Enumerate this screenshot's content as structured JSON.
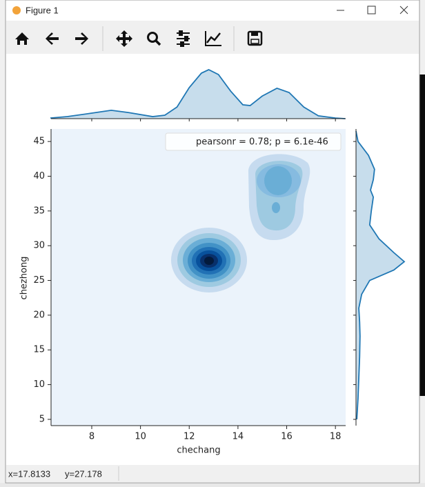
{
  "window": {
    "title": "Figure 1"
  },
  "status": {
    "x": "x=17.8133",
    "y": "y=27.178"
  },
  "chart_data": {
    "type": "kde-joint",
    "xlabel": "chechang",
    "ylabel": "chezhong",
    "annotation": "pearsonr = 0.78; p = 6.1e-46",
    "color": "#1f77b4",
    "xlim": [
      6.33,
      18.42
    ],
    "ylim": [
      4.1,
      46.8
    ],
    "xticks": [
      8,
      10,
      12,
      14,
      16,
      18
    ],
    "yticks": [
      5,
      10,
      15,
      20,
      25,
      30,
      35,
      40,
      45
    ],
    "marginal_x": {
      "x": [
        6.3,
        7,
        8,
        8.8,
        9.5,
        10.5,
        11,
        11.5,
        12,
        12.5,
        12.8,
        13.2,
        13.7,
        14.2,
        14.5,
        15,
        15.6,
        16.1,
        16.7,
        17.3,
        18,
        18.4
      ],
      "density": [
        0.003,
        0.01,
        0.027,
        0.041,
        0.03,
        0.01,
        0.017,
        0.057,
        0.152,
        0.223,
        0.24,
        0.216,
        0.135,
        0.068,
        0.064,
        0.111,
        0.149,
        0.128,
        0.057,
        0.014,
        0.003,
        0.0
      ]
    },
    "marginal_y": {
      "y": [
        46.5,
        45,
        43,
        41,
        39.5,
        38,
        37,
        35,
        33,
        31,
        29,
        27.7,
        26.5,
        25,
        23,
        21,
        19,
        17,
        14,
        11,
        8,
        5
      ],
      "density": [
        0,
        0.005,
        0.031,
        0.046,
        0.043,
        0.036,
        0.043,
        0.038,
        0.034,
        0.057,
        0.094,
        0.12,
        0.094,
        0.034,
        0.014,
        0.007,
        0.009,
        0.01,
        0.009,
        0.007,
        0.005,
        0.002
      ]
    }
  }
}
